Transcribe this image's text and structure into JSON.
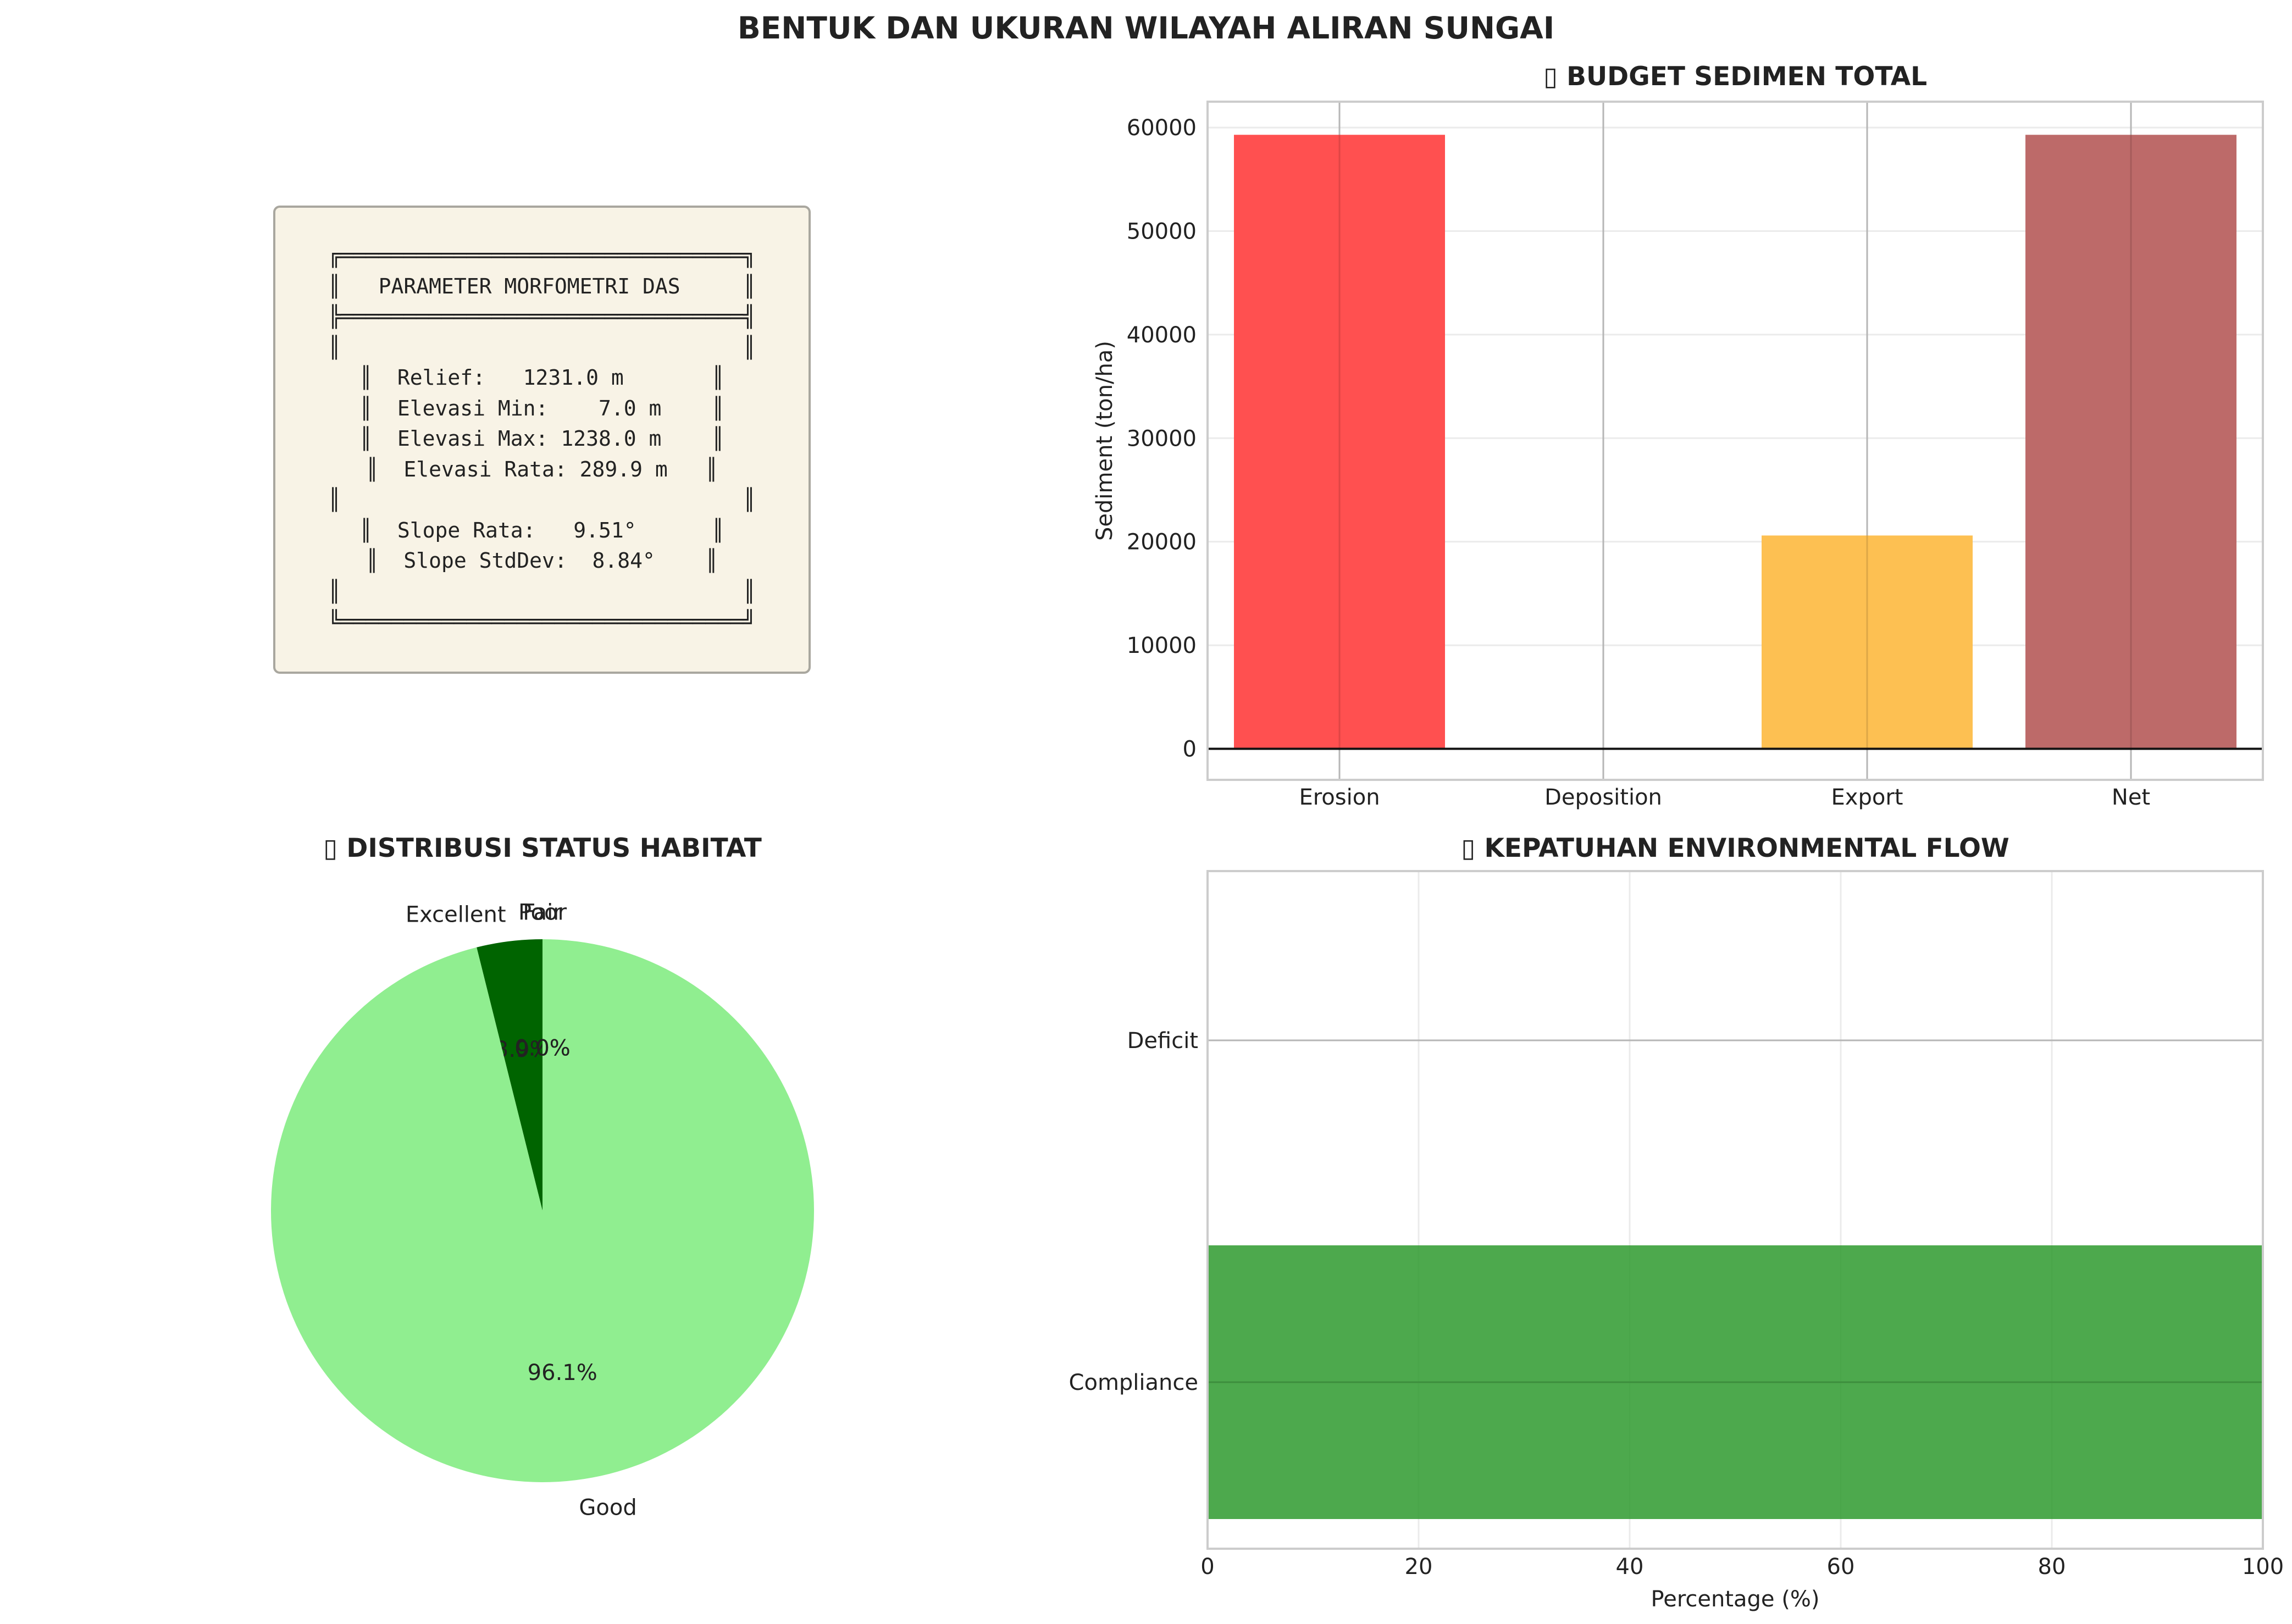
{
  "figure": {
    "title": "BENTUK DAN UKURAN WILAYAH ALIRAN SUNGAI"
  },
  "morfometri": {
    "lines": [
      "╔════════════════════════════════╗",
      "║   PARAMETER MORFOMETRI DAS     ║",
      "╠════════════════════════════════╣",
      "║                                ║",
      "║  Relief:   1231.0 m       ║",
      "║  Elevasi Min:    7.0 m    ║",
      "║  Elevasi Max: 1238.0 m    ║",
      "║  Elevasi Rata: 289.9 m   ║",
      "║                                ║",
      "║  Slope Rata:   9.51°      ║",
      "║  Slope StdDev:  8.84°    ║",
      "║                                ║",
      "╚════════════════════════════════╝"
    ]
  },
  "chart_data": [
    {
      "type": "bar",
      "title": "▯ BUDGET SEDIMEN TOTAL",
      "ylabel": "Sediment (ton/ha)",
      "categories": [
        "Erosion",
        "Deposition",
        "Export",
        "Net"
      ],
      "values": [
        59300,
        0,
        20600,
        59300
      ],
      "colors": [
        "#ff4d4d",
        "#4682b4",
        "#fdbf4f",
        "#bc6766"
      ],
      "ylim": [
        -3000,
        62500
      ],
      "yticks": [
        0,
        10000,
        20000,
        30000,
        40000,
        50000,
        60000
      ],
      "grid": true
    },
    {
      "type": "pie",
      "title": "▯ DISTRIBUSI STATUS HABITAT",
      "labels": [
        "Excellent",
        "Good",
        "Fair",
        "Poor"
      ],
      "values": [
        3.9,
        96.1,
        0.0,
        0.0
      ],
      "pct_labels": [
        "3.9%",
        "96.1%",
        "0.0%",
        "0.0%"
      ],
      "colors": [
        "#006400",
        "#90ee90",
        "#ffa500",
        "#ff0000"
      ]
    },
    {
      "type": "bar",
      "orientation": "horizontal",
      "title": "▯ KEPATUHAN ENVIRONMENTAL FLOW",
      "xlabel": "Percentage (%)",
      "categories": [
        "Compliance",
        "Deficit"
      ],
      "values": [
        100,
        0
      ],
      "colors": [
        "#2e9a2e",
        "#ff4d4d"
      ],
      "xlim": [
        0,
        100
      ],
      "xticks": [
        0,
        20,
        40,
        60,
        80,
        100
      ],
      "grid": true
    }
  ]
}
